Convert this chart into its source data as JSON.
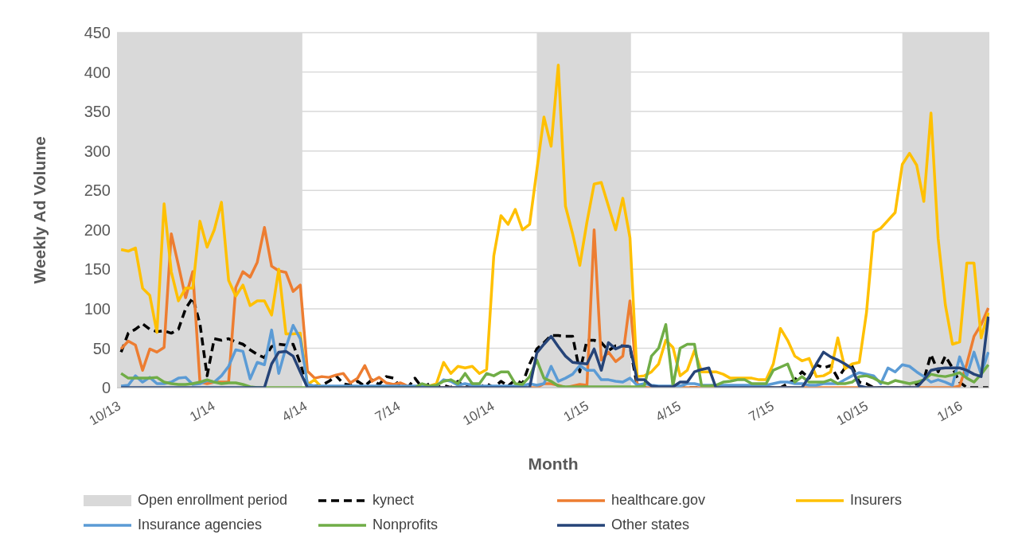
{
  "chart_data": {
    "type": "line",
    "xlabel": "Month",
    "ylabel": "Weekly Ad Volume",
    "marker": "none",
    "grid": "y",
    "legend": "bottom",
    "xlim": [
      "2013-10-01",
      "2016-01-31"
    ],
    "xticks": [
      {
        "value": "2013-10-01",
        "label": "10/13"
      },
      {
        "value": "2014-01-01",
        "label": "1/14"
      },
      {
        "value": "2014-04-01",
        "label": "4/14"
      },
      {
        "value": "2014-07-01",
        "label": "7/14"
      },
      {
        "value": "2014-10-01",
        "label": "10/14"
      },
      {
        "value": "2015-01-01",
        "label": "1/15"
      },
      {
        "value": "2015-04-01",
        "label": "4/15"
      },
      {
        "value": "2015-07-01",
        "label": "7/15"
      },
      {
        "value": "2015-10-01",
        "label": "10/15"
      },
      {
        "value": "2016-01-01",
        "label": "1/16"
      }
    ],
    "ylim": [
      0,
      450
    ],
    "yticks": [
      0,
      50,
      100,
      150,
      200,
      250,
      300,
      350,
      400,
      450
    ],
    "bands": [
      {
        "axis": "x",
        "from": "2013-10-01",
        "to": "2014-03-31",
        "label": "Open enrollment period",
        "color": "#d9d9d9"
      },
      {
        "axis": "x",
        "from": "2014-11-15",
        "to": "2015-02-15",
        "color": "#d9d9d9"
      },
      {
        "axis": "x",
        "from": "2015-11-07",
        "to": "2016-01-31",
        "color": "#d9d9d9"
      }
    ],
    "x": [
      "2013-10-05",
      "2013-10-12",
      "2013-10-19",
      "2013-10-26",
      "2013-11-02",
      "2013-11-09",
      "2013-11-16",
      "2013-11-23",
      "2013-11-30",
      "2013-12-07",
      "2013-12-14",
      "2013-12-21",
      "2013-12-28",
      "2014-01-04",
      "2014-01-11",
      "2014-01-18",
      "2014-01-25",
      "2014-02-01",
      "2014-02-08",
      "2014-02-15",
      "2014-02-22",
      "2014-03-01",
      "2014-03-08",
      "2014-03-15",
      "2014-03-22",
      "2014-03-29",
      "2014-04-05",
      "2014-04-12",
      "2014-04-19",
      "2014-04-26",
      "2014-05-03",
      "2014-05-10",
      "2014-05-17",
      "2014-05-24",
      "2014-05-31",
      "2014-06-07",
      "2014-06-14",
      "2014-06-21",
      "2014-06-28",
      "2014-07-05",
      "2014-07-12",
      "2014-07-19",
      "2014-07-26",
      "2014-08-02",
      "2014-08-09",
      "2014-08-16",
      "2014-08-23",
      "2014-08-30",
      "2014-09-06",
      "2014-09-13",
      "2014-09-20",
      "2014-09-27",
      "2014-10-04",
      "2014-10-11",
      "2014-10-18",
      "2014-10-25",
      "2014-11-01",
      "2014-11-08",
      "2014-11-15",
      "2014-11-22",
      "2014-11-29",
      "2014-12-06",
      "2014-12-13",
      "2014-12-20",
      "2014-12-27",
      "2015-01-03",
      "2015-01-10",
      "2015-01-17",
      "2015-01-24",
      "2015-01-31",
      "2015-02-07",
      "2015-02-14",
      "2015-02-21",
      "2015-02-28",
      "2015-03-07",
      "2015-03-14",
      "2015-03-21",
      "2015-03-28",
      "2015-04-04",
      "2015-04-11",
      "2015-04-18",
      "2015-04-25",
      "2015-05-02",
      "2015-05-09",
      "2015-05-16",
      "2015-05-23",
      "2015-05-30",
      "2015-06-06",
      "2015-06-13",
      "2015-06-20",
      "2015-06-27",
      "2015-07-04",
      "2015-07-11",
      "2015-07-18",
      "2015-07-25",
      "2015-08-01",
      "2015-08-08",
      "2015-08-15",
      "2015-08-22",
      "2015-08-29",
      "2015-09-05",
      "2015-09-12",
      "2015-09-19",
      "2015-09-26",
      "2015-10-03",
      "2015-10-10",
      "2015-10-17",
      "2015-10-24",
      "2015-10-31",
      "2015-11-07",
      "2015-11-14",
      "2015-11-21",
      "2015-11-28",
      "2015-12-05",
      "2015-12-12",
      "2015-12-19",
      "2015-12-26",
      "2016-01-02",
      "2016-01-09",
      "2016-01-16",
      "2016-01-23",
      "2016-01-30"
    ],
    "series": [
      {
        "name": "kynect",
        "color": "#000000",
        "line_style": "dashed",
        "values": [
          45,
          69,
          74,
          81,
          74,
          71,
          72,
          69,
          74,
          100,
          114,
          81,
          15,
          62,
          60,
          62,
          58,
          55,
          48,
          42,
          38,
          52,
          55,
          54,
          55,
          31,
          2,
          2,
          3,
          8,
          15,
          5,
          3,
          8,
          2,
          10,
          4,
          14,
          12,
          0,
          0,
          12,
          0,
          5,
          0,
          3,
          0,
          8,
          0,
          5,
          0,
          5,
          0,
          8,
          2,
          10,
          5,
          30,
          49,
          57,
          66,
          66,
          65,
          65,
          20,
          60,
          60,
          57,
          47,
          53,
          53,
          52,
          2,
          0,
          0,
          0,
          0,
          0,
          0,
          0,
          0,
          0,
          0,
          0,
          0,
          0,
          0,
          0,
          0,
          0,
          0,
          0,
          0,
          5,
          10,
          20,
          12,
          29,
          25,
          28,
          12,
          25,
          27,
          7,
          5,
          0,
          0,
          0,
          0,
          0,
          0,
          5,
          10,
          42,
          20,
          40,
          25,
          7,
          0,
          0,
          0,
          0
        ]
      },
      {
        "name": "healthcare.gov",
        "color": "#ed7d31",
        "values": [
          49,
          59,
          54,
          22,
          49,
          45,
          51,
          195,
          155,
          114,
          147,
          7,
          5,
          7,
          7,
          7,
          127,
          147,
          140,
          159,
          203,
          154,
          148,
          146,
          122,
          130,
          21,
          12,
          14,
          13,
          16,
          18,
          6,
          12,
          28,
          8,
          13,
          6,
          4,
          6,
          2,
          0,
          0,
          0,
          0,
          0,
          0,
          0,
          0,
          0,
          0,
          0,
          0,
          0,
          0,
          0,
          0,
          0,
          0,
          5,
          5,
          3,
          0,
          2,
          4,
          3,
          200,
          35,
          45,
          33,
          40,
          110,
          5,
          0,
          0,
          0,
          0,
          0,
          0,
          0,
          0,
          0,
          0,
          0,
          0,
          0,
          0,
          0,
          0,
          0,
          0,
          0,
          0,
          0,
          0,
          0,
          0,
          0,
          0,
          0,
          0,
          0,
          0,
          0,
          0,
          0,
          0,
          0,
          0,
          0,
          0,
          0,
          0,
          0,
          0,
          0,
          0,
          2,
          30,
          65,
          80,
          101
        ]
      },
      {
        "name": "Insurers",
        "color": "#ffc000",
        "values": [
          175,
          173,
          177,
          126,
          117,
          70,
          233,
          147,
          110,
          126,
          126,
          211,
          178,
          200,
          235,
          136,
          116,
          130,
          104,
          110,
          110,
          92,
          150,
          68,
          68,
          69,
          4,
          10,
          0,
          0,
          0,
          0,
          0,
          0,
          0,
          0,
          0,
          0,
          0,
          0,
          0,
          0,
          0,
          2,
          5,
          32,
          18,
          27,
          25,
          27,
          18,
          23,
          167,
          218,
          207,
          226,
          200,
          207,
          275,
          343,
          306,
          409,
          230,
          195,
          155,
          210,
          258,
          260,
          230,
          200,
          240,
          190,
          14,
          15,
          20,
          30,
          60,
          51,
          15,
          22,
          47,
          20,
          20,
          20,
          17,
          12,
          12,
          12,
          12,
          10,
          10,
          30,
          75,
          60,
          40,
          34,
          37,
          14,
          15,
          20,
          63,
          24,
          30,
          32,
          95,
          197,
          202,
          212,
          222,
          283,
          297,
          282,
          236,
          348,
          189,
          105,
          55,
          58,
          158,
          158,
          63,
          95
        ]
      },
      {
        "name": "Insurance agencies",
        "color": "#5b9bd5",
        "values": [
          2,
          3,
          15,
          7,
          13,
          5,
          5,
          7,
          12,
          13,
          4,
          5,
          9,
          7,
          15,
          27,
          48,
          46,
          11,
          32,
          29,
          73,
          18,
          51,
          79,
          62,
          4,
          2,
          2,
          2,
          2,
          2,
          2,
          2,
          2,
          2,
          2,
          2,
          2,
          2,
          2,
          2,
          2,
          2,
          2,
          10,
          8,
          3,
          5,
          3,
          2,
          2,
          2,
          2,
          2,
          2,
          2,
          5,
          3,
          5,
          27,
          8,
          12,
          17,
          28,
          22,
          22,
          10,
          10,
          8,
          7,
          12,
          3,
          5,
          3,
          2,
          2,
          2,
          2,
          5,
          5,
          3,
          3,
          3,
          3,
          3,
          3,
          3,
          3,
          3,
          3,
          5,
          7,
          7,
          5,
          5,
          3,
          3,
          5,
          5,
          5,
          10,
          15,
          19,
          17,
          15,
          5,
          25,
          20,
          29,
          27,
          20,
          14,
          7,
          10,
          7,
          3,
          39,
          15,
          45,
          17,
          45
        ]
      },
      {
        "name": "Nonprofits",
        "color": "#70ad47",
        "values": [
          18,
          12,
          12,
          12,
          12,
          13,
          7,
          5,
          4,
          4,
          5,
          7,
          10,
          7,
          5,
          6,
          6,
          4,
          1,
          0,
          0,
          0,
          0,
          0,
          0,
          0,
          0,
          0,
          0,
          0,
          0,
          0,
          0,
          0,
          0,
          0,
          0,
          0,
          0,
          0,
          0,
          0,
          5,
          2,
          3,
          8,
          10,
          5,
          18,
          5,
          5,
          18,
          15,
          20,
          20,
          5,
          4,
          14,
          35,
          12,
          8,
          2,
          1,
          1,
          1,
          1,
          1,
          1,
          1,
          1,
          1,
          1,
          1,
          2,
          40,
          50,
          80,
          2,
          50,
          55,
          55,
          2,
          2,
          3,
          7,
          8,
          10,
          10,
          5,
          5,
          5,
          22,
          26,
          30,
          7,
          14,
          7,
          7,
          7,
          10,
          5,
          5,
          7,
          14,
          15,
          12,
          7,
          5,
          9,
          7,
          5,
          7,
          10,
          17,
          15,
          14,
          16,
          19,
          12,
          7,
          17,
          29
        ]
      },
      {
        "name": "Other states",
        "color": "#264478",
        "values": [
          0,
          0,
          0,
          0,
          0,
          0,
          0,
          0,
          0,
          0,
          0,
          0,
          0,
          0,
          0,
          0,
          0,
          0,
          0,
          0,
          0,
          30,
          45,
          46,
          40,
          20,
          0,
          0,
          0,
          0,
          0,
          0,
          0,
          0,
          0,
          0,
          0,
          0,
          0,
          0,
          0,
          0,
          0,
          0,
          0,
          0,
          0,
          0,
          0,
          0,
          0,
          0,
          0,
          0,
          0,
          0,
          0,
          0,
          44,
          55,
          65,
          52,
          40,
          32,
          31,
          30,
          49,
          22,
          57,
          49,
          53,
          52,
          10,
          10,
          2,
          1,
          1,
          1,
          7,
          7,
          20,
          23,
          25,
          0,
          0,
          0,
          0,
          0,
          0,
          0,
          0,
          0,
          0,
          0,
          0,
          0,
          14,
          30,
          45,
          39,
          35,
          30,
          24,
          2,
          0,
          0,
          0,
          0,
          0,
          0,
          0,
          0,
          10,
          22,
          24,
          25,
          25,
          25,
          22,
          17,
          14,
          90
        ]
      }
    ]
  }
}
